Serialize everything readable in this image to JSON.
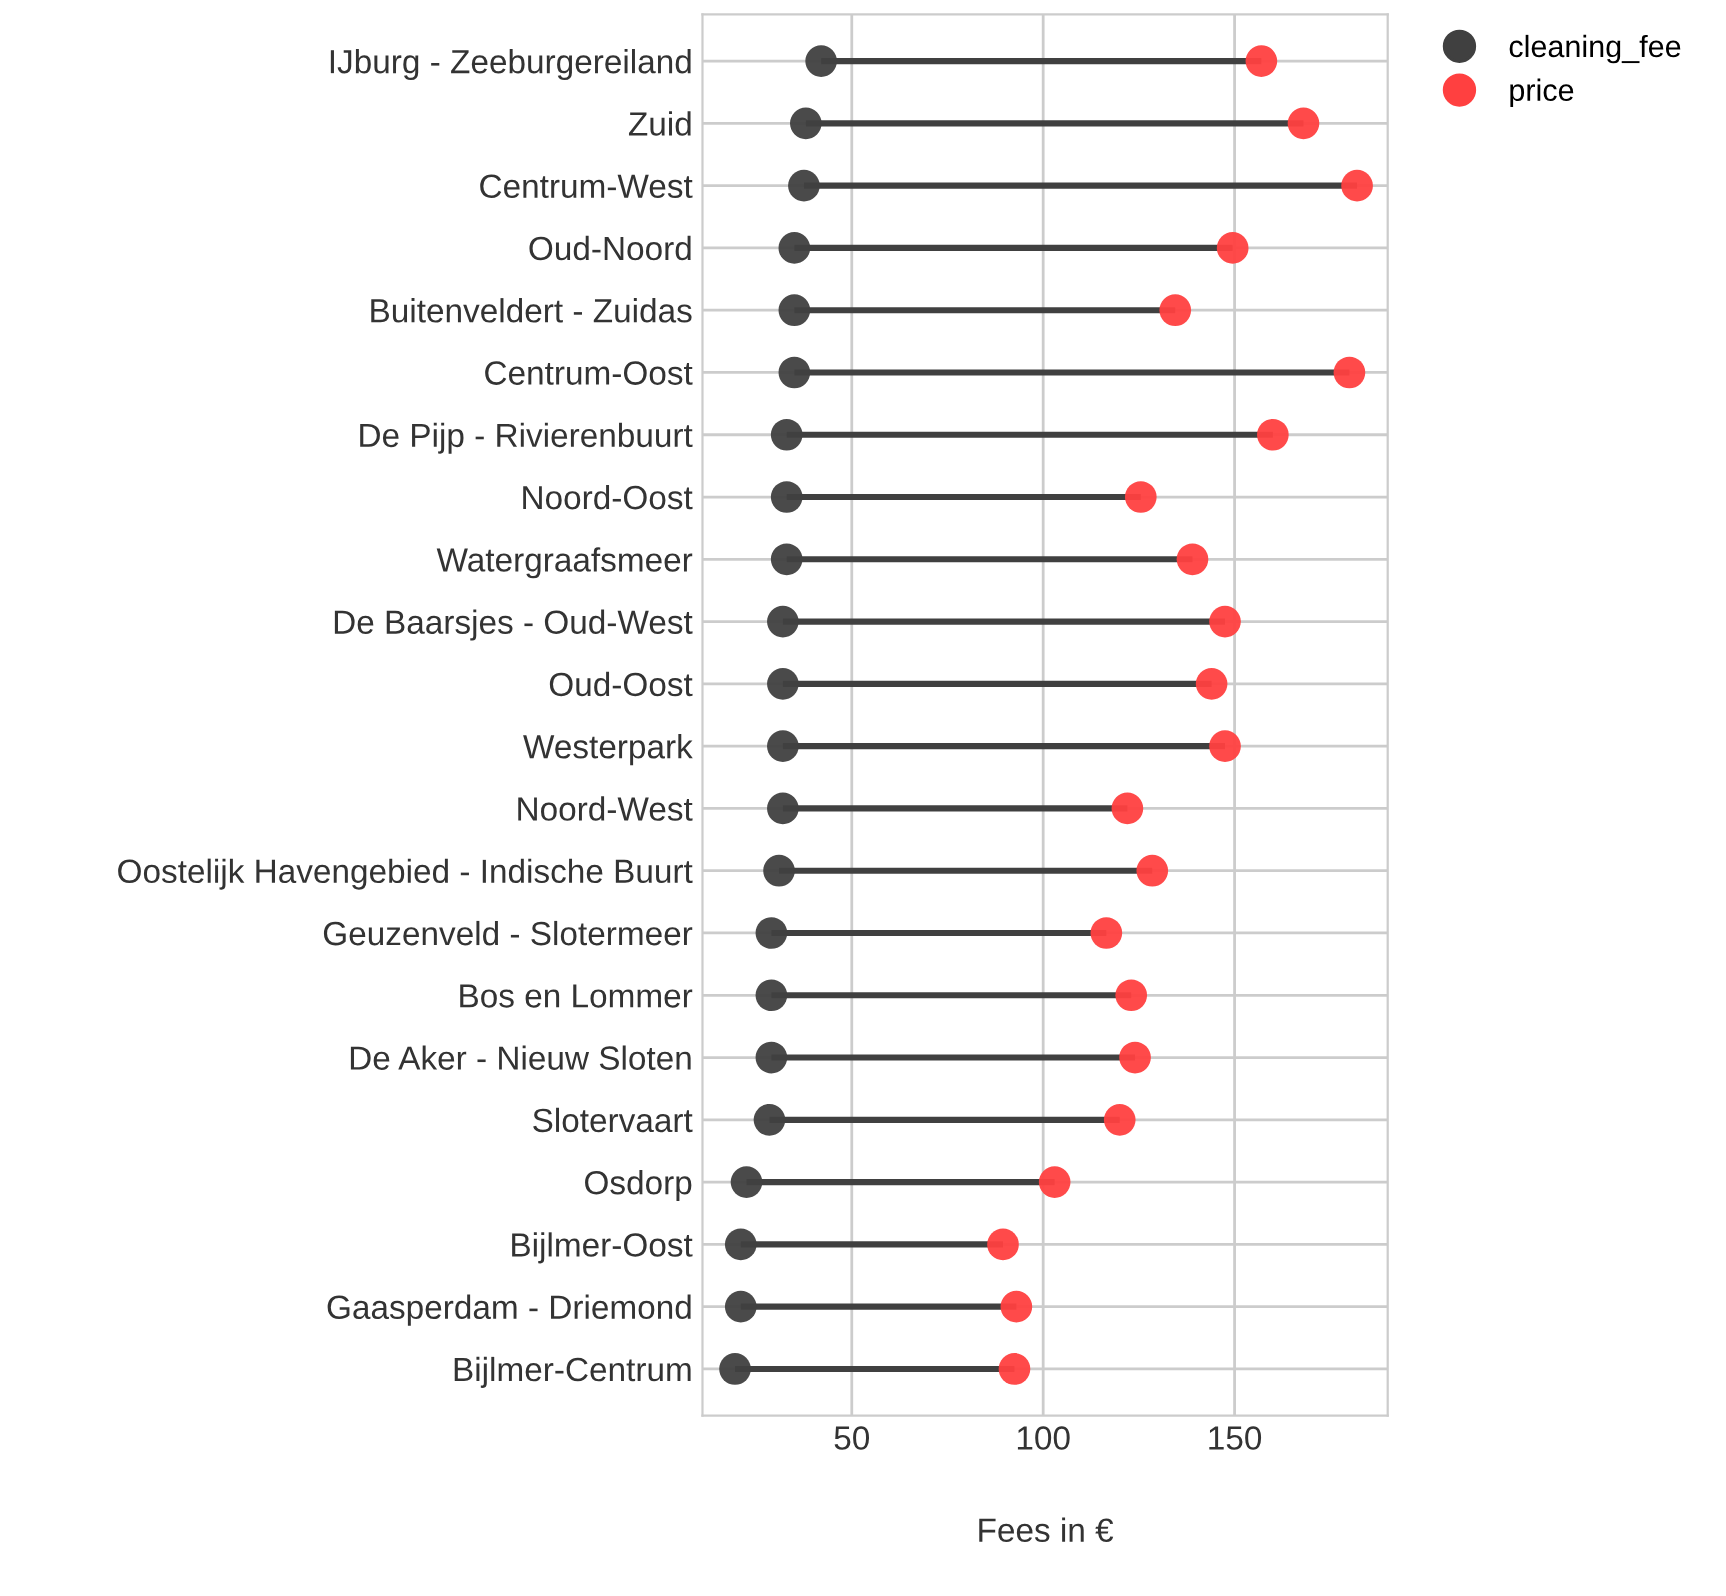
{
  "chart_data": {
    "type": "scatter",
    "orientation": "horizontal",
    "xlabel": "Fees in €",
    "categories": [
      "IJburg - Zeeburgereiland",
      "Zuid",
      "Centrum-West",
      "Oud-Noord",
      "Buitenveldert - Zuidas",
      "Centrum-Oost",
      "De Pijp - Rivierenbuurt",
      "Noord-Oost",
      "Watergraafsmeer",
      "De Baarsjes - Oud-West",
      "Oud-Oost",
      "Westerpark",
      "Noord-West",
      "Oostelijk Havengebied - Indische Buurt",
      "Geuzenveld - Slotermeer",
      "Bos en Lommer",
      "De Aker - Nieuw Sloten",
      "Slotervaart",
      "Osdorp",
      "Bijlmer-Oost",
      "Gaasperdam - Driemond",
      "Bijlmer-Centrum"
    ],
    "series": [
      {
        "name": "cleaning_fee",
        "color": "#404040",
        "values": [
          42,
          38,
          37.5,
          35,
          35,
          35,
          33,
          33,
          33,
          32,
          32,
          32,
          32,
          31,
          29,
          29,
          29,
          28.5,
          22.5,
          21,
          21,
          19.5
        ]
      },
      {
        "name": "price",
        "color": "#ff4040",
        "values": [
          157,
          168,
          182,
          149.5,
          134.5,
          180,
          160,
          125.5,
          139,
          147.5,
          144,
          147.5,
          122,
          128.5,
          116.5,
          123,
          124,
          120,
          103,
          89.5,
          93,
          92.5
        ]
      }
    ],
    "xlim": [
      11,
      190
    ],
    "xticks": [
      50,
      100,
      150
    ],
    "grid": true,
    "legend": "top right outside",
    "marker": "circle"
  }
}
